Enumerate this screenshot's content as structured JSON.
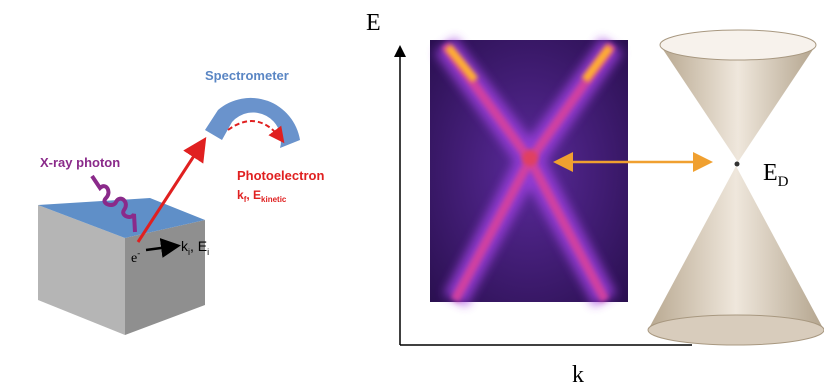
{
  "photoemission": {
    "spectrometer": "Spectrometer",
    "photon": "X-ray photon",
    "photoelectron": "Photoelectron",
    "final_state": {
      "k": "k",
      "k_sub": "f",
      "E": ", E",
      "E_sub": "kinetic"
    },
    "electron": {
      "base": "e",
      "sup": "-"
    },
    "initial_state": {
      "k": "k",
      "k_sub": "i",
      "E": ", E",
      "E_sub": "i"
    }
  },
  "dispersion": {
    "y_axis": "E",
    "x_axis": "k",
    "dirac_point": {
      "base": "E",
      "sub": "D"
    }
  }
}
